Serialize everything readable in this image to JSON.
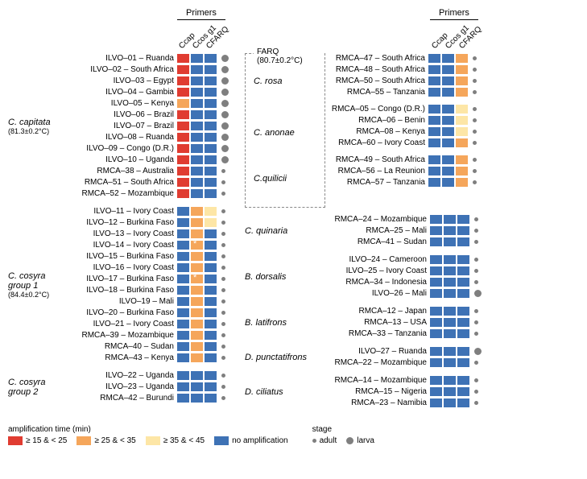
{
  "colors": {
    "red": "#e03c31",
    "orange": "#f5a65b",
    "yellow": "#fde6a6",
    "blue": "#3e72b5",
    "dot": "#7f7f7f"
  },
  "primers_label": "Primers",
  "primers": [
    "Ccap",
    "Ccos g1",
    "CFARQ"
  ],
  "farq_label": "FARQ (80.7±0.2°C)",
  "left_label_widths": {
    "group": 70,
    "sample": 140
  },
  "right_label_widths": {
    "group": 90,
    "sample": 140
  },
  "legend": {
    "amp_title": "amplification time (min)",
    "amp_items": [
      {
        "color": "red",
        "label": "≥ 15 & < 25"
      },
      {
        "color": "orange",
        "label": "≥ 25 & < 35"
      },
      {
        "color": "yellow",
        "label": "≥ 35 & < 45"
      },
      {
        "color": "blue",
        "label": "no amplification"
      }
    ],
    "stage_title": "stage",
    "stage_items": [
      {
        "size": "s",
        "label": "adult"
      },
      {
        "size": "l",
        "label": "larva"
      }
    ]
  },
  "left_groups": [
    {
      "name": "C. capitata",
      "temp": "(81.3±0.2°C)",
      "rows": [
        {
          "s": "ILVO–01 – Ruanda",
          "c": [
            "red",
            "blue",
            "blue"
          ],
          "d": "l"
        },
        {
          "s": "ILVO–02 – South Africa",
          "c": [
            "red",
            "blue",
            "blue"
          ],
          "d": "l"
        },
        {
          "s": "ILVO–03 – Egypt",
          "c": [
            "red",
            "blue",
            "blue"
          ],
          "d": "l"
        },
        {
          "s": "ILVO–04 – Gambia",
          "c": [
            "red",
            "blue",
            "blue"
          ],
          "d": "l"
        },
        {
          "s": "ILVO–05 – Kenya",
          "c": [
            "orange",
            "blue",
            "blue"
          ],
          "d": "l"
        },
        {
          "s": "ILVO–06 – Brazil",
          "c": [
            "red",
            "blue",
            "blue"
          ],
          "d": "l"
        },
        {
          "s": "ILVO–07 – Brazil",
          "c": [
            "red",
            "blue",
            "blue"
          ],
          "d": "l"
        },
        {
          "s": "ILVO–08 – Ruanda",
          "c": [
            "red",
            "blue",
            "blue"
          ],
          "d": "l"
        },
        {
          "s": "ILVO–09 – Congo (D.R.)",
          "c": [
            "red",
            "blue",
            "blue"
          ],
          "d": "l"
        },
        {
          "s": "ILVO–10 – Uganda",
          "c": [
            "red",
            "blue",
            "blue"
          ],
          "d": "l"
        },
        {
          "s": "RMCA–38 – Australia",
          "c": [
            "red",
            "blue",
            "blue"
          ],
          "d": "s"
        },
        {
          "s": "RMCA–51 – South Africa",
          "c": [
            "red",
            "blue",
            "blue"
          ],
          "d": "s"
        },
        {
          "s": "RMCA–52 – Mozambique",
          "c": [
            "red",
            "blue",
            "blue"
          ],
          "d": "s"
        }
      ]
    },
    {
      "name": "C. cosyra group 1",
      "temp": "(84.4±0.2°C)",
      "rows": [
        {
          "s": "ILVO–11 – Ivory Coast",
          "c": [
            "blue",
            "orange",
            "yellow"
          ],
          "d": "s"
        },
        {
          "s": "ILVO–12 – Burkina Faso",
          "c": [
            "blue",
            "orange",
            "yellow"
          ],
          "d": "s"
        },
        {
          "s": "ILVO–13 – Ivory Coast",
          "c": [
            "blue",
            "orange",
            "blue"
          ],
          "d": "s"
        },
        {
          "s": "ILVO–14 – Ivory Coast",
          "c": [
            "blue",
            "orange",
            "blue"
          ],
          "d": "s",
          "star": 1
        },
        {
          "s": "ILVO–15 – Burkina Faso",
          "c": [
            "blue",
            "orange",
            "blue"
          ],
          "d": "s"
        },
        {
          "s": "ILVO–16 – Ivory Coast",
          "c": [
            "blue",
            "orange",
            "blue"
          ],
          "d": "s"
        },
        {
          "s": "ILVO–17 – Burkina Faso",
          "c": [
            "blue",
            "orange",
            "blue"
          ],
          "d": "s",
          "star": 1
        },
        {
          "s": "ILVO–18 – Burkina Faso",
          "c": [
            "blue",
            "orange",
            "blue"
          ],
          "d": "s"
        },
        {
          "s": "ILVO–19 – Mali",
          "c": [
            "blue",
            "orange",
            "blue"
          ],
          "d": "s"
        },
        {
          "s": "ILVO–20 – Burkina Faso",
          "c": [
            "blue",
            "orange",
            "blue"
          ],
          "d": "s"
        },
        {
          "s": "ILVO–21 – Ivory Coast",
          "c": [
            "blue",
            "orange",
            "blue"
          ],
          "d": "s"
        },
        {
          "s": "RMCA–39 – Mozambique",
          "c": [
            "blue",
            "orange",
            "blue"
          ],
          "d": "s"
        },
        {
          "s": "RMCA–40 – Sudan",
          "c": [
            "blue",
            "orange",
            "blue"
          ],
          "d": "s"
        },
        {
          "s": "RMCA–43 – Kenya",
          "c": [
            "blue",
            "orange",
            "blue"
          ],
          "d": "s"
        }
      ]
    },
    {
      "name": "C. cosyra group 2",
      "temp": "",
      "rows": [
        {
          "s": "ILVO–22 – Uganda",
          "c": [
            "blue",
            "blue",
            "blue"
          ],
          "d": "s"
        },
        {
          "s": "ILVO–23 – Uganda",
          "c": [
            "blue",
            "blue",
            "blue"
          ],
          "d": "s"
        },
        {
          "s": "RMCA–42 – Burundi",
          "c": [
            "blue",
            "blue",
            "blue"
          ],
          "d": "s"
        }
      ]
    }
  ],
  "right_groups_farq": [
    {
      "name": "C. rosa",
      "rows": [
        {
          "s": "RMCA–47 – South Africa",
          "c": [
            "blue",
            "blue",
            "orange"
          ],
          "d": "s"
        },
        {
          "s": "RMCA–48 – South Africa",
          "c": [
            "blue",
            "blue",
            "orange"
          ],
          "d": "s"
        },
        {
          "s": "RMCA–50 – South Africa",
          "c": [
            "blue",
            "blue",
            "orange"
          ],
          "d": "s"
        },
        {
          "s": "RMCA–55 – Tanzania",
          "c": [
            "blue",
            "blue",
            "orange"
          ],
          "d": "s"
        }
      ]
    },
    {
      "name": "C. anonae",
      "rows": [
        {
          "s": "RMCA–05 – Congo (D.R.)",
          "c": [
            "blue",
            "blue",
            "yellow"
          ],
          "d": "s"
        },
        {
          "s": "RMCA–06 – Benin",
          "c": [
            "blue",
            "blue",
            "yellow"
          ],
          "d": "s"
        },
        {
          "s": "RMCA–08 – Kenya",
          "c": [
            "blue",
            "blue",
            "yellow"
          ],
          "d": "s"
        },
        {
          "s": "RMCA–60 – Ivory Coast",
          "c": [
            "blue",
            "blue",
            "orange"
          ],
          "d": "s"
        }
      ]
    },
    {
      "name": "C.quilicii",
      "rows": [
        {
          "s": "RMCA–49 – South Africa",
          "c": [
            "blue",
            "blue",
            "orange"
          ],
          "d": "s"
        },
        {
          "s": "RMCA–56 – La Reunion",
          "c": [
            "blue",
            "blue",
            "orange"
          ],
          "d": "s"
        },
        {
          "s": "RMCA–57 – Tanzania",
          "c": [
            "blue",
            "blue",
            "orange"
          ],
          "d": "s"
        }
      ]
    }
  ],
  "right_groups_rest": [
    {
      "name": "C. quinaria",
      "rows": [
        {
          "s": "RMCA–24 – Mozambique",
          "c": [
            "blue",
            "blue",
            "blue"
          ],
          "d": "s"
        },
        {
          "s": "RMCA–25 – Mali",
          "c": [
            "blue",
            "blue",
            "blue"
          ],
          "d": "s"
        },
        {
          "s": "RMCA–41 – Sudan",
          "c": [
            "blue",
            "blue",
            "blue"
          ],
          "d": "s"
        }
      ]
    },
    {
      "name": "B. dorsalis",
      "rows": [
        {
          "s": "ILVO–24 – Cameroon",
          "c": [
            "blue",
            "blue",
            "blue"
          ],
          "d": "s"
        },
        {
          "s": "ILVO–25 – Ivory Coast",
          "c": [
            "blue",
            "blue",
            "blue"
          ],
          "d": "s"
        },
        {
          "s": "RMCA–34 – Indonesia",
          "c": [
            "blue",
            "blue",
            "blue"
          ],
          "d": "s"
        },
        {
          "s": "ILVO–26 – Mali",
          "c": [
            "blue",
            "blue",
            "blue"
          ],
          "d": "l"
        }
      ]
    },
    {
      "name": "B. latifrons",
      "rows": [
        {
          "s": "RMCA–12 – Japan",
          "c": [
            "blue",
            "blue",
            "blue"
          ],
          "d": "s"
        },
        {
          "s": "RMCA–13 – USA",
          "c": [
            "blue",
            "blue",
            "blue"
          ],
          "d": "s"
        },
        {
          "s": "RMCA–33 – Tanzania",
          "c": [
            "blue",
            "blue",
            "blue"
          ],
          "d": "s"
        }
      ]
    },
    {
      "name": "D. punctatifrons",
      "rows": [
        {
          "s": "ILVO–27 – Ruanda",
          "c": [
            "blue",
            "blue",
            "blue"
          ],
          "d": "l"
        },
        {
          "s": "RMCA–22 – Mozambique",
          "c": [
            "blue",
            "blue",
            "blue"
          ],
          "d": "s"
        }
      ]
    },
    {
      "name": "D. ciliatus",
      "rows": [
        {
          "s": "RMCA–14 – Mozambique",
          "c": [
            "blue",
            "blue",
            "blue"
          ],
          "d": "s"
        },
        {
          "s": "RMCA–15 – Nigeria",
          "c": [
            "blue",
            "blue",
            "blue"
          ],
          "d": "s"
        },
        {
          "s": "RMCA–23 – Namibia",
          "c": [
            "blue",
            "blue",
            "blue"
          ],
          "d": "s"
        }
      ]
    }
  ]
}
